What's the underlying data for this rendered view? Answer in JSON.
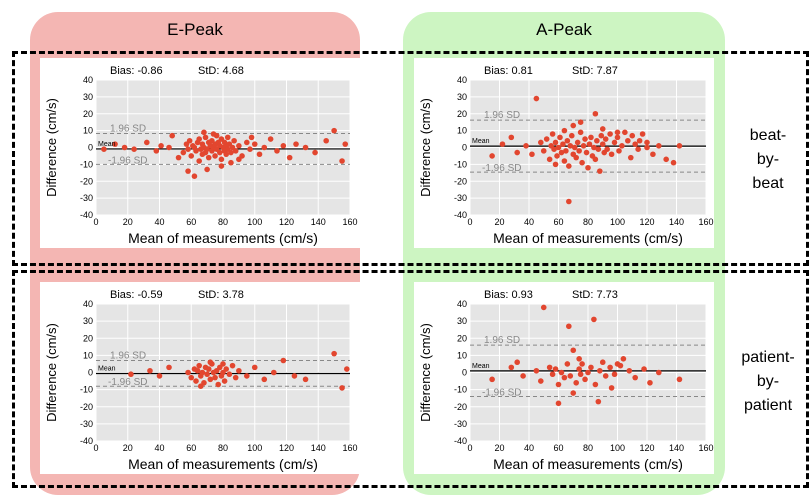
{
  "columns": {
    "e_peak": {
      "title": "E-Peak",
      "color": "#f4b6b3"
    },
    "a_peak": {
      "title": "A-Peak",
      "color": "#cdf5c2"
    }
  },
  "rows": {
    "beat": {
      "label_lines": [
        "beat-",
        "by-",
        "beat"
      ]
    },
    "patient": {
      "label_lines": [
        "patient-",
        "by-",
        "patient"
      ]
    }
  },
  "colors": {
    "points": "#e2462f",
    "plot_bg": "#e5e5e5",
    "grid": "#ffffff",
    "mean_line": "#000000",
    "sd_line": "#888888"
  },
  "chart_data": [
    {
      "id": "e-beat",
      "type": "scatter",
      "bias_text": "Bias: -0.86",
      "std_text": "StD: 4.68",
      "xlabel": "Mean of measurements (cm/s)",
      "ylabel": "Difference (cm/s)",
      "xlim": [
        0,
        160
      ],
      "ylim": [
        -40,
        40
      ],
      "xticks": [
        0,
        20,
        40,
        60,
        80,
        100,
        120,
        140,
        160
      ],
      "yticks": [
        -40,
        -30,
        -20,
        -10,
        0,
        10,
        20,
        30,
        40
      ],
      "mean_label": "Mean",
      "sd_label_upper": "1.96 SD",
      "sd_label_lower": "-1.96 SD",
      "mean": -0.86,
      "upper": 8.3,
      "lower": -10.0,
      "points": [
        [
          5,
          -1
        ],
        [
          12,
          2
        ],
        [
          18,
          0
        ],
        [
          24,
          -1
        ],
        [
          32,
          3
        ],
        [
          38,
          -2
        ],
        [
          41,
          1
        ],
        [
          46,
          0
        ],
        [
          55,
          -3
        ],
        [
          57,
          2
        ],
        [
          58,
          -1
        ],
        [
          59,
          4
        ],
        [
          60,
          -5
        ],
        [
          61,
          1
        ],
        [
          62,
          0
        ],
        [
          63,
          -2
        ],
        [
          64,
          3
        ],
        [
          65,
          -8
        ],
        [
          65,
          5
        ],
        [
          66,
          -1
        ],
        [
          67,
          2
        ],
        [
          67,
          -4
        ],
        [
          68,
          0
        ],
        [
          69,
          6
        ],
        [
          69,
          -3
        ],
        [
          70,
          -1
        ],
        [
          71,
          3
        ],
        [
          71,
          -6
        ],
        [
          72,
          1
        ],
        [
          73,
          -2
        ],
        [
          73,
          4
        ],
        [
          74,
          0
        ],
        [
          75,
          -5
        ],
        [
          75,
          2
        ],
        [
          76,
          7
        ],
        [
          76,
          -1
        ],
        [
          77,
          3
        ],
        [
          78,
          -3
        ],
        [
          78,
          1
        ],
        [
          79,
          -7
        ],
        [
          79,
          5
        ],
        [
          80,
          0
        ],
        [
          81,
          -2
        ],
        [
          81,
          3
        ],
        [
          82,
          1
        ],
        [
          82,
          -4
        ],
        [
          83,
          6
        ],
        [
          83,
          -1
        ],
        [
          84,
          2
        ],
        [
          85,
          -3
        ],
        [
          86,
          0
        ],
        [
          87,
          4
        ],
        [
          88,
          -2
        ],
        [
          90,
          1
        ],
        [
          92,
          -5
        ],
        [
          95,
          3
        ],
        [
          97,
          -1
        ],
        [
          100,
          2
        ],
        [
          103,
          -4
        ],
        [
          106,
          0
        ],
        [
          110,
          5
        ],
        [
          114,
          -2
        ],
        [
          118,
          1
        ],
        [
          122,
          -6
        ],
        [
          126,
          2
        ],
        [
          132,
          0
        ],
        [
          138,
          -3
        ],
        [
          145,
          4
        ],
        [
          150,
          10
        ],
        [
          155,
          -8
        ],
        [
          157,
          2
        ],
        [
          62,
          -17
        ],
        [
          58,
          -14
        ],
        [
          70,
          -13
        ],
        [
          85,
          -9
        ],
        [
          74,
          8
        ],
        [
          79,
          -11
        ],
        [
          48,
          7
        ],
        [
          52,
          -6
        ],
        [
          68,
          9
        ],
        [
          90,
          -7
        ],
        [
          98,
          6
        ]
      ]
    },
    {
      "id": "a-beat",
      "type": "scatter",
      "bias_text": "Bias: 0.81",
      "std_text": "StD: 7.87",
      "xlabel": "Mean of measurements (cm/s)",
      "ylabel": "Difference (cm/s)",
      "xlim": [
        0,
        160
      ],
      "ylim": [
        -40,
        40
      ],
      "xticks": [
        0,
        20,
        40,
        60,
        80,
        100,
        120,
        140,
        160
      ],
      "yticks": [
        -40,
        -30,
        -20,
        -10,
        0,
        10,
        20,
        30,
        40
      ],
      "mean_label": "Mean",
      "sd_label_upper": "1.96 SD",
      "sd_label_lower": "-1.96 SD",
      "mean": 0.81,
      "upper": 16.2,
      "lower": -14.6,
      "points": [
        [
          15,
          -5
        ],
        [
          22,
          2
        ],
        [
          28,
          6
        ],
        [
          32,
          -3
        ],
        [
          38,
          1
        ],
        [
          42,
          -4
        ],
        [
          45,
          29
        ],
        [
          48,
          3
        ],
        [
          50,
          -2
        ],
        [
          52,
          5
        ],
        [
          54,
          -7
        ],
        [
          55,
          1
        ],
        [
          56,
          8
        ],
        [
          57,
          -1
        ],
        [
          58,
          3
        ],
        [
          59,
          -5
        ],
        [
          60,
          0
        ],
        [
          61,
          6
        ],
        [
          62,
          -3
        ],
        [
          63,
          2
        ],
        [
          64,
          -8
        ],
        [
          64,
          10
        ],
        [
          65,
          -2
        ],
        [
          66,
          4
        ],
        [
          67,
          -11
        ],
        [
          67,
          -32
        ],
        [
          68,
          1
        ],
        [
          69,
          7
        ],
        [
          70,
          -4
        ],
        [
          70,
          13
        ],
        [
          71,
          0
        ],
        [
          72,
          -6
        ],
        [
          73,
          3
        ],
        [
          74,
          -2
        ],
        [
          75,
          9
        ],
        [
          76,
          -9
        ],
        [
          77,
          1
        ],
        [
          78,
          5
        ],
        [
          79,
          -3
        ],
        [
          80,
          -12
        ],
        [
          81,
          2
        ],
        [
          82,
          6
        ],
        [
          83,
          -5
        ],
        [
          84,
          0
        ],
        [
          85,
          20
        ],
        [
          85,
          -7
        ],
        [
          86,
          4
        ],
        [
          87,
          -1
        ],
        [
          88,
          -14
        ],
        [
          89,
          7
        ],
        [
          90,
          2
        ],
        [
          91,
          -3
        ],
        [
          92,
          5
        ],
        [
          93,
          -1
        ],
        [
          95,
          8
        ],
        [
          96,
          -4
        ],
        [
          98,
          3
        ],
        [
          100,
          6
        ],
        [
          101,
          -2
        ],
        [
          103,
          1
        ],
        [
          105,
          9
        ],
        [
          107,
          4
        ],
        [
          109,
          -6
        ],
        [
          110,
          7
        ],
        [
          112,
          2
        ],
        [
          114,
          -1
        ],
        [
          117,
          8
        ],
        [
          120,
          3
        ],
        [
          124,
          -4
        ],
        [
          128,
          1
        ],
        [
          133,
          -7
        ],
        [
          138,
          -9
        ],
        [
          142,
          1
        ],
        [
          75,
          15
        ],
        [
          90,
          11
        ],
        [
          100,
          9
        ],
        [
          115,
          4
        ],
        [
          58,
          -10
        ],
        [
          120,
          0
        ]
      ]
    },
    {
      "id": "e-patient",
      "type": "scatter",
      "bias_text": "Bias: -0.59",
      "std_text": "StD: 3.78",
      "xlabel": "Mean of measurements (cm/s)",
      "ylabel": "Difference (cm/s)",
      "xlim": [
        0,
        160
      ],
      "ylim": [
        -40,
        40
      ],
      "xticks": [
        0,
        20,
        40,
        60,
        80,
        100,
        120,
        140,
        160
      ],
      "yticks": [
        -40,
        -30,
        -20,
        -10,
        0,
        10,
        20,
        30,
        40
      ],
      "mean_label": "Mean",
      "sd_label_upper": "1.96 SD",
      "sd_label_lower": "-1.96 SD",
      "mean": -0.59,
      "upper": 7.0,
      "lower": -8.0,
      "points": [
        [
          22,
          -1
        ],
        [
          34,
          1
        ],
        [
          40,
          -2
        ],
        [
          46,
          3
        ],
        [
          58,
          0
        ],
        [
          60,
          -3
        ],
        [
          62,
          2
        ],
        [
          63,
          -5
        ],
        [
          64,
          1
        ],
        [
          65,
          4
        ],
        [
          66,
          -2
        ],
        [
          67,
          0
        ],
        [
          68,
          -6
        ],
        [
          69,
          3
        ],
        [
          70,
          -1
        ],
        [
          71,
          2
        ],
        [
          72,
          -4
        ],
        [
          73,
          5
        ],
        [
          74,
          0
        ],
        [
          75,
          -3
        ],
        [
          76,
          1
        ],
        [
          77,
          -7
        ],
        [
          78,
          3
        ],
        [
          79,
          -2
        ],
        [
          80,
          0
        ],
        [
          81,
          -5
        ],
        [
          82,
          2
        ],
        [
          84,
          -1
        ],
        [
          86,
          4
        ],
        [
          88,
          -3
        ],
        [
          90,
          1
        ],
        [
          95,
          -2
        ],
        [
          100,
          3
        ],
        [
          106,
          -4
        ],
        [
          112,
          0
        ],
        [
          118,
          7
        ],
        [
          125,
          -2
        ],
        [
          132,
          -4
        ],
        [
          150,
          11
        ],
        [
          155,
          -9
        ],
        [
          158,
          2
        ],
        [
          72,
          6
        ],
        [
          80,
          5
        ],
        [
          66,
          -8
        ]
      ]
    },
    {
      "id": "a-patient",
      "type": "scatter",
      "bias_text": "Bias: 0.93",
      "std_text": "StD: 7.73",
      "xlabel": "Mean of measurements (cm/s)",
      "ylabel": "Difference (cm/s)",
      "xlim": [
        0,
        160
      ],
      "ylim": [
        -40,
        40
      ],
      "xticks": [
        0,
        20,
        40,
        60,
        80,
        100,
        120,
        140,
        160
      ],
      "yticks": [
        -40,
        -30,
        -20,
        -10,
        0,
        10,
        20,
        30,
        40
      ],
      "mean_label": "Mean",
      "sd_label_upper": "1.96 SD",
      "sd_label_lower": "-1.96 SD",
      "mean": 0.93,
      "upper": 16.0,
      "lower": -14.0,
      "points": [
        [
          15,
          -4
        ],
        [
          28,
          3
        ],
        [
          32,
          6
        ],
        [
          36,
          -2
        ],
        [
          45,
          1
        ],
        [
          48,
          -5
        ],
        [
          50,
          38
        ],
        [
          54,
          3
        ],
        [
          56,
          -1
        ],
        [
          58,
          2
        ],
        [
          60,
          -7
        ],
        [
          62,
          0
        ],
        [
          64,
          -3
        ],
        [
          66,
          5
        ],
        [
          67,
          27
        ],
        [
          68,
          -2
        ],
        [
          70,
          13
        ],
        [
          72,
          -6
        ],
        [
          74,
          2
        ],
        [
          75,
          -1
        ],
        [
          76,
          5
        ],
        [
          78,
          -4
        ],
        [
          80,
          0
        ],
        [
          82,
          3
        ],
        [
          84,
          31
        ],
        [
          85,
          -7
        ],
        [
          87,
          -17
        ],
        [
          88,
          1
        ],
        [
          90,
          6
        ],
        [
          92,
          -2
        ],
        [
          95,
          3
        ],
        [
          98,
          -1
        ],
        [
          100,
          5
        ],
        [
          104,
          8
        ],
        [
          108,
          1
        ],
        [
          112,
          -3
        ],
        [
          118,
          2
        ],
        [
          122,
          -6
        ],
        [
          128,
          0
        ],
        [
          142,
          -4
        ],
        [
          60,
          -18
        ],
        [
          74,
          8
        ],
        [
          96,
          -9
        ],
        [
          102,
          4
        ],
        [
          70,
          -12
        ]
      ]
    }
  ]
}
